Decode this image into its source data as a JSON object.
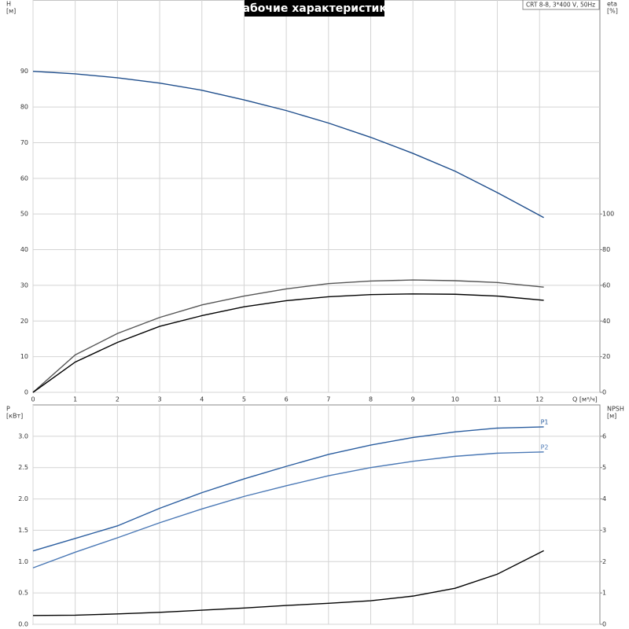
{
  "chart_data": [
    {
      "type": "line",
      "title": "Рабочие характеристики",
      "note": "CRT 8-8, 3*400 V, 50Hz",
      "y_label": "H",
      "y_unit": "[м]",
      "y2_label": "eta",
      "y2_unit": "[%]",
      "x_label": "Q [м³/ч]",
      "x": [
        0,
        1,
        2,
        3,
        4,
        5,
        6,
        7,
        8,
        9,
        10,
        11,
        12.1
      ],
      "xlim": [
        0,
        13.43
      ],
      "xticks": [
        0,
        1,
        2,
        3,
        4,
        5,
        6,
        7,
        8,
        9,
        10,
        11,
        12
      ],
      "ylim": [
        0,
        110
      ],
      "yticks": [
        0,
        10,
        20,
        30,
        40,
        50,
        60,
        70,
        80,
        90
      ],
      "y2lim": [
        0,
        220
      ],
      "y2ticks": [
        0,
        20,
        40,
        60,
        80,
        100
      ],
      "grid": true,
      "series": [
        {
          "color": "#1f4e8c",
          "values": [
            90,
            89.3,
            88.2,
            86.7,
            84.7,
            82,
            79,
            75.5,
            71.5,
            67,
            62,
            56,
            49
          ]
        },
        {
          "color": "#555555",
          "axis": "y2",
          "values": [
            0,
            21,
            33,
            42,
            49,
            54,
            58,
            61,
            62.4,
            63,
            62.6,
            61.6,
            59
          ]
        },
        {
          "color": "#000000",
          "axis": "y2",
          "values": [
            0,
            17,
            28,
            37,
            43,
            48,
            51.4,
            53.6,
            54.8,
            55.2,
            55,
            54,
            51.6
          ]
        }
      ]
    },
    {
      "type": "line",
      "y_label": "P",
      "y_unit": "[кВт]",
      "y2_label": "NPSH",
      "y2_unit": "[м]",
      "x": [
        0,
        1,
        2,
        3,
        4,
        5,
        6,
        7,
        8,
        9,
        10,
        11,
        12.1
      ],
      "xlim": [
        0,
        13.43
      ],
      "ylim": [
        0,
        3.5
      ],
      "yticks": [
        {
          "value": 0,
          "label": "0.0"
        },
        0.5,
        {
          "value": 1,
          "label": "1.0"
        },
        1.5,
        {
          "value": 2,
          "label": "2.0"
        },
        2.5,
        {
          "value": 3,
          "label": "3.0"
        }
      ],
      "y2lim": [
        0,
        7
      ],
      "y2ticks": [
        0,
        1,
        2,
        3,
        4,
        5,
        6
      ],
      "grid": true,
      "series": [
        {
          "name": "P1",
          "color": "#2a5d9f",
          "values": [
            1.17,
            1.37,
            1.57,
            1.85,
            2.1,
            2.32,
            2.52,
            2.71,
            2.86,
            2.98,
            3.07,
            3.13,
            3.15
          ]
        },
        {
          "name": "P2",
          "color": "#4a78b5",
          "values": [
            0.9,
            1.15,
            1.38,
            1.62,
            1.84,
            2.04,
            2.21,
            2.37,
            2.5,
            2.6,
            2.68,
            2.73,
            2.75
          ]
        },
        {
          "color": "#000000",
          "axis": "y2",
          "values": [
            0.28,
            0.29,
            0.33,
            0.38,
            0.45,
            0.52,
            0.6,
            0.67,
            0.75,
            0.9,
            1.15,
            1.6,
            2.35
          ]
        }
      ]
    }
  ]
}
